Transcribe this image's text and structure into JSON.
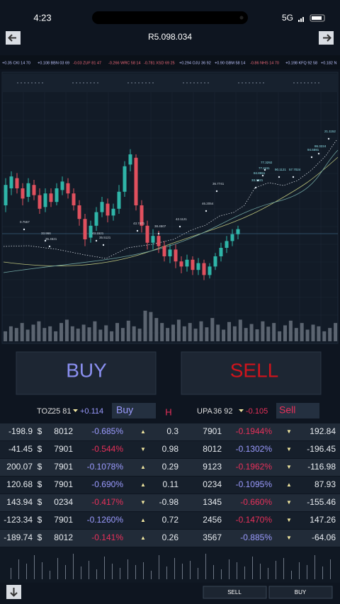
{
  "status": {
    "time": "4:23",
    "network": "5G"
  },
  "header": {
    "title": "R5.098.034"
  },
  "ticker": [
    "+0.35 CKI 14 70",
    "+0.108 BBN 03 69",
    "-0.03 ZUF 81 47",
    "-0.266 WRC 58 14",
    "-0.781 XSD 69 25",
    "+0.294 OJU 36 92",
    "+0.90 GBM 58 14",
    "-0.86 NHS 14 70",
    "+0.198 KFQ 92 58",
    "+0.182 N"
  ],
  "chart": {
    "ylim": [
      0,
      100
    ],
    "vlim": [
      0,
      100
    ],
    "up_color": "#2fb5a8",
    "down_color": "#e0505e",
    "candles": [
      [
        50,
        62,
        66,
        46
      ],
      [
        60,
        67,
        70,
        56
      ],
      [
        66,
        60,
        69,
        57
      ],
      [
        60,
        54,
        63,
        50
      ],
      [
        55,
        63,
        66,
        52
      ],
      [
        62,
        56,
        65,
        53
      ],
      [
        56,
        48,
        60,
        45
      ],
      [
        49,
        57,
        60,
        46
      ],
      [
        57,
        52,
        60,
        49
      ],
      [
        52,
        60,
        63,
        50
      ],
      [
        59,
        64,
        67,
        56
      ],
      [
        63,
        57,
        66,
        54
      ],
      [
        57,
        50,
        60,
        47
      ],
      [
        50,
        42,
        53,
        38
      ],
      [
        42,
        30,
        45,
        26
      ],
      [
        31,
        38,
        41,
        28
      ],
      [
        38,
        46,
        49,
        35
      ],
      [
        46,
        52,
        55,
        43
      ],
      [
        51,
        44,
        54,
        40
      ],
      [
        44,
        48,
        51,
        41
      ],
      [
        48,
        58,
        62,
        45
      ],
      [
        58,
        73,
        76,
        55
      ],
      [
        74,
        80,
        83,
        70
      ],
      [
        78,
        50,
        80,
        47
      ],
      [
        50,
        38,
        53,
        34
      ],
      [
        38,
        28,
        41,
        24
      ],
      [
        28,
        32,
        36,
        24
      ],
      [
        32,
        26,
        35,
        22
      ],
      [
        26,
        20,
        29,
        17
      ],
      [
        20,
        24,
        27,
        16
      ],
      [
        24,
        17,
        27,
        13
      ],
      [
        17,
        14,
        20,
        10
      ],
      [
        14,
        18,
        21,
        11
      ],
      [
        18,
        12,
        20,
        9
      ],
      [
        12,
        16,
        19,
        9
      ],
      [
        16,
        9,
        18,
        6
      ],
      [
        9,
        14,
        16,
        7
      ],
      [
        14,
        20,
        22,
        12
      ],
      [
        20,
        25,
        28,
        17
      ],
      [
        25,
        29,
        32,
        22
      ],
      [
        29,
        33,
        36,
        26
      ],
      [
        33,
        36,
        38,
        30
      ]
    ],
    "volume": [
      30,
      45,
      40,
      55,
      35,
      50,
      60,
      40,
      45,
      30,
      55,
      65,
      45,
      38,
      50,
      42,
      60,
      35,
      48,
      30,
      55,
      40,
      62,
      45,
      38,
      92,
      88,
      70,
      55,
      40,
      50,
      65,
      45,
      55,
      38,
      60,
      42,
      70,
      50,
      35,
      58,
      45,
      65,
      40,
      52,
      36,
      60,
      44,
      55,
      30,
      48,
      62,
      40,
      55,
      35,
      50,
      45,
      30,
      40,
      55
    ],
    "mini_volume": [
      40,
      70,
      55,
      85,
      60,
      30,
      75,
      50,
      90,
      45,
      65,
      35,
      80,
      55,
      40,
      70,
      50,
      60,
      30,
      85,
      45,
      75,
      55,
      65,
      40,
      90,
      50,
      35,
      70,
      60,
      45,
      80,
      55,
      40,
      65,
      75,
      30,
      60,
      50,
      85,
      45,
      70
    ],
    "annotations": [
      "0.7557",
      "33.966",
      "35.4621",
      "43.1521",
      "35.5121",
      "43.7471",
      "38.4507",
      "42.1121",
      "46.2054",
      "36.7741",
      "84.8551",
      "77.2411",
      "77.3292",
      "33.3321",
      "90.1121",
      "57.7024",
      "94.5591",
      "86.3224",
      "21.1152"
    ]
  },
  "actions": {
    "buy": "BUY",
    "sell": "SELL"
  },
  "trade_bar": {
    "left": {
      "symbol": "TOZ",
      "price": "25 81",
      "change": "+0.114",
      "button": "Buy"
    },
    "middle": "H",
    "right": {
      "symbol": "UPA",
      "price": "36 92",
      "change": "-0.105",
      "button": "Sell"
    }
  },
  "table": {
    "rows": [
      [
        "-198.9",
        "$",
        "8012",
        "-0.685%",
        "▲",
        "0.3",
        "7901",
        "-0.1944%",
        "▼",
        "192.84"
      ],
      [
        "-41.45",
        "$",
        "7901",
        "-0.544%",
        "▼",
        "0.98",
        "8012",
        "-0.1302%",
        "▼",
        "-196.45"
      ],
      [
        "200.07",
        "$",
        "7901",
        "-0.1078%",
        "▲",
        "0.29",
        "9123",
        "-0.1962%",
        "▼",
        "-116.98"
      ],
      [
        "120.68",
        "$",
        "7901",
        "-0.690%",
        "▲",
        "0.11",
        "0234",
        "-0.1095%",
        "▲",
        "87.93"
      ],
      [
        "143.94",
        "$",
        "0234",
        "-0.417%",
        "▼",
        "-0.98",
        "1345",
        "-0.660%",
        "▼",
        "-155.46"
      ],
      [
        "-123.34",
        "$",
        "7901",
        "-0.1260%",
        "▲",
        "0.72",
        "2456",
        "-0.1470%",
        "▼",
        "147.26"
      ],
      [
        "-189.74",
        "$",
        "8012",
        "-0.141%",
        "▲",
        "0.26",
        "3567",
        "-0.885%",
        "▼",
        "-64.06"
      ]
    ],
    "pct_colors": [
      [
        "#9b9bff",
        "#e8305a"
      ],
      [
        "#e8305a",
        "#9b9bff"
      ],
      [
        "#9b9bff",
        "#e8305a"
      ],
      [
        "#9b9bff",
        "#9b9bff"
      ],
      [
        "#e8305a",
        "#e8305a"
      ],
      [
        "#9b9bff",
        "#e8305a"
      ],
      [
        "#e8305a",
        "#9b9bff"
      ]
    ]
  },
  "footer": {
    "sell": "SELL",
    "buy": "BUY"
  }
}
